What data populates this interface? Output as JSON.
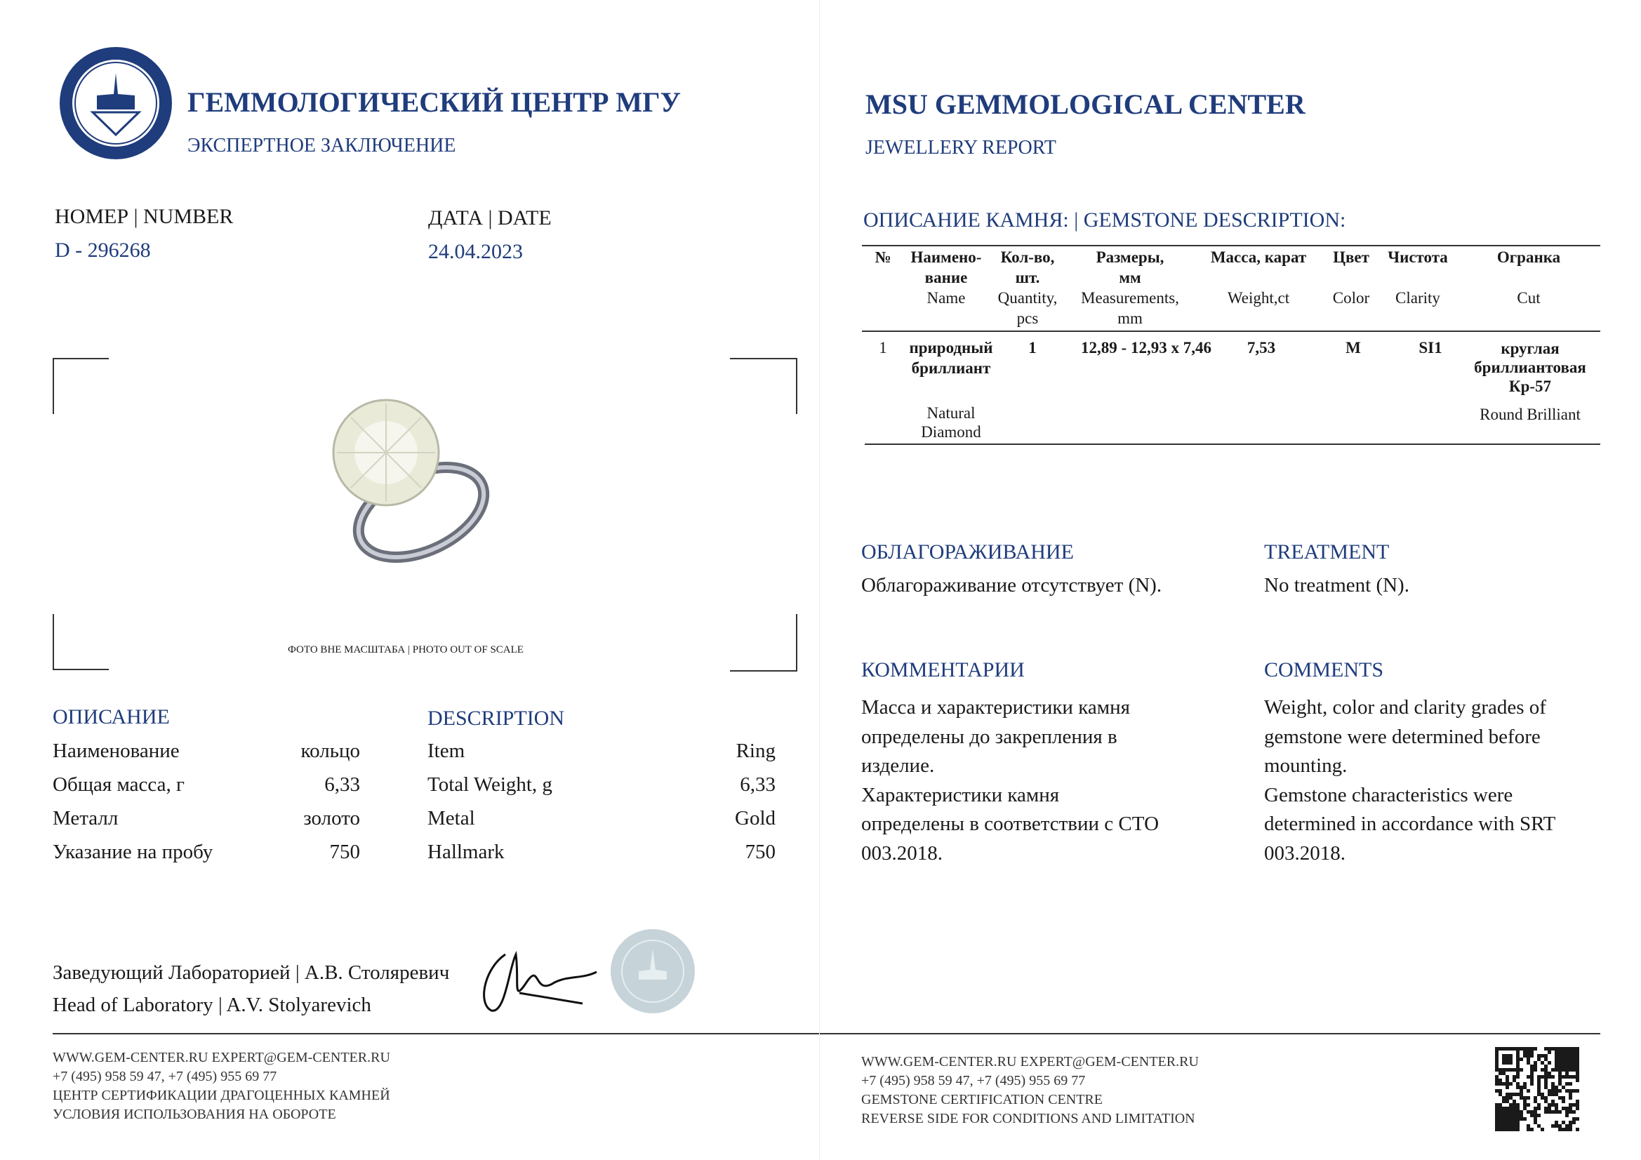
{
  "header": {
    "title_ru": "ГЕММОЛОГИЧЕСКИЙ ЦЕНТР МГУ",
    "subtitle_ru": "ЭКСПЕРТНОЕ ЗАКЛЮЧЕНИЕ",
    "title_en": "MSU GEMMOLOGICAL CENTER",
    "subtitle_en": "JEWELLERY REPORT",
    "brand_color": "#1f3c7c"
  },
  "report": {
    "number_label": "НОМЕР | NUMBER",
    "number": "D - 296268",
    "date_label": "ДАТА | DATE",
    "date": "24.04.2023"
  },
  "photo": {
    "caption": "ФОТО ВНЕ МАСШТАБА | PHOTO OUT OF SCALE"
  },
  "description": {
    "title_ru": "ОПИСАНИЕ",
    "title_en": "DESCRIPTION",
    "rows": [
      {
        "label_ru": "Наименование",
        "value_ru": "кольцо",
        "label_en": "Item",
        "value_en": "Ring"
      },
      {
        "label_ru": "Общая масса, г",
        "value_ru": "6,33",
        "label_en": "Total Weight, g",
        "value_en": "6,33"
      },
      {
        "label_ru": "Металл",
        "value_ru": "золото",
        "label_en": "Metal",
        "value_en": "Gold"
      },
      {
        "label_ru": "Указание на пробу",
        "value_ru": "750",
        "label_en": "Hallmark",
        "value_en": "750"
      }
    ]
  },
  "gemstone": {
    "title": "ОПИСАНИЕ КАМНЯ: | GEMSTONE DESCRIPTION:",
    "headers": {
      "no": "№",
      "name_ru1": "Наимено-",
      "name_ru2": "вание",
      "name_en": "Name",
      "qty_ru1": "Кол-во,",
      "qty_ru2": "шт.",
      "qty_en1": "Quantity,",
      "qty_en2": "pcs",
      "meas_ru1": "Размеры,",
      "meas_ru2": "мм",
      "meas_en1": "Measurements,",
      "meas_en2": "mm",
      "weight_ru": "Масса, карат",
      "weight_en": "Weight,ct",
      "color_ru": "Цвет",
      "color_en": "Color",
      "clarity_ru": "Чистота",
      "clarity_en": "Clarity",
      "cut_ru": "Огранка",
      "cut_en": "Cut"
    },
    "row": {
      "no": "1",
      "name_ru1": "природный",
      "name_ru2": "бриллиант",
      "name_en1": "Natural",
      "name_en2": "Diamond",
      "qty": "1",
      "meas": "12,89 - 12,93 x 7,46",
      "weight": "7,53",
      "color": "M",
      "clarity": "SI1",
      "cut_ru1": "круглая",
      "cut_ru2": "бриллиантовая",
      "cut_ru3": "Кр-57",
      "cut_en": "Round Brilliant"
    }
  },
  "treatment": {
    "title_ru": "ОБЛАГОРАЖИВАНИЕ",
    "text_ru": "Облагораживание отсутствует (N).",
    "title_en": "TREATMENT",
    "text_en": "No treatment (N)."
  },
  "comments": {
    "title_ru": "КОММЕНТАРИИ",
    "lines_ru": [
      "Масса и характеристики камня",
      "определены до закрепления в",
      "изделие.",
      "Характеристики камня",
      "определены в соответствии с СТО",
      "003.2018."
    ],
    "title_en": "COMMENTS",
    "lines_en": [
      "Weight, color and clarity grades of",
      "gemstone were determined before",
      "mounting.",
      "Gemstone characteristics were",
      "determined in accordance with SRT",
      "003.2018."
    ]
  },
  "signature": {
    "role_ru": "Заведующий Лабораторией",
    "name_ru": "А.В. Столяревич",
    "role_en": "Head of Laboratory",
    "name_en": "A.V. Stolyarevich"
  },
  "footer": {
    "left": [
      "WWW.GEM-CENTER.RU EXPERT@GEM-CENTER.RU",
      "+7 (495) 958 59 47, +7 (495) 955 69 77",
      "ЦЕНТР СЕРТИФИКАЦИИ ДРАГОЦЕННЫХ КАМНЕЙ",
      "УСЛОВИЯ ИСПОЛЬЗОВАНИЯ НА ОБОРОТЕ"
    ],
    "right": [
      "WWW.GEM-CENTER.RU EXPERT@GEM-CENTER.RU",
      "+7 (495) 958 59 47, +7 (495) 955 69 77",
      "GEMSTONE CERTIFICATION CENTRE",
      "REVERSE SIDE FOR CONDITIONS AND LIMITATION"
    ]
  }
}
